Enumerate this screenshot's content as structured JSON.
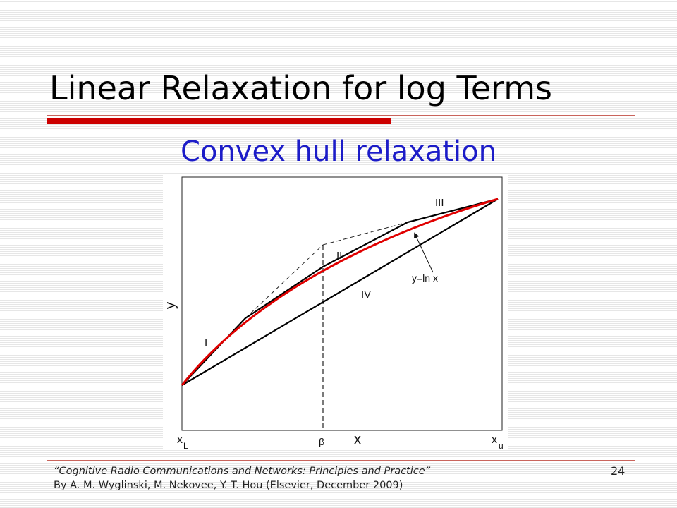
{
  "slide": {
    "title": "Linear Relaxation for log Terms",
    "subtitle": "Convex hull relaxation",
    "citation_line1": "“Cognitive Radio Communications and Networks: Principles and Practice”",
    "citation_line2": "By A. M. Wyglinski, M. Nekovee, Y. T. Hou (Elsevier, December 2009)",
    "page_number": "24",
    "accent_color": "#cc0000",
    "subtitle_color": "#1c1cc8"
  },
  "figure": {
    "axis_x_label": "x",
    "axis_y_label": "y",
    "x_lower_main": "x",
    "x_lower_sub": "L",
    "x_upper_main": "x",
    "x_upper_sub": "u",
    "beta_label": "β",
    "region_I": "I",
    "region_II": "II",
    "region_III": "III",
    "region_IV": "IV",
    "curve_label": "y=ln x",
    "curve_color": "#e00000",
    "line_color": "#000000"
  }
}
